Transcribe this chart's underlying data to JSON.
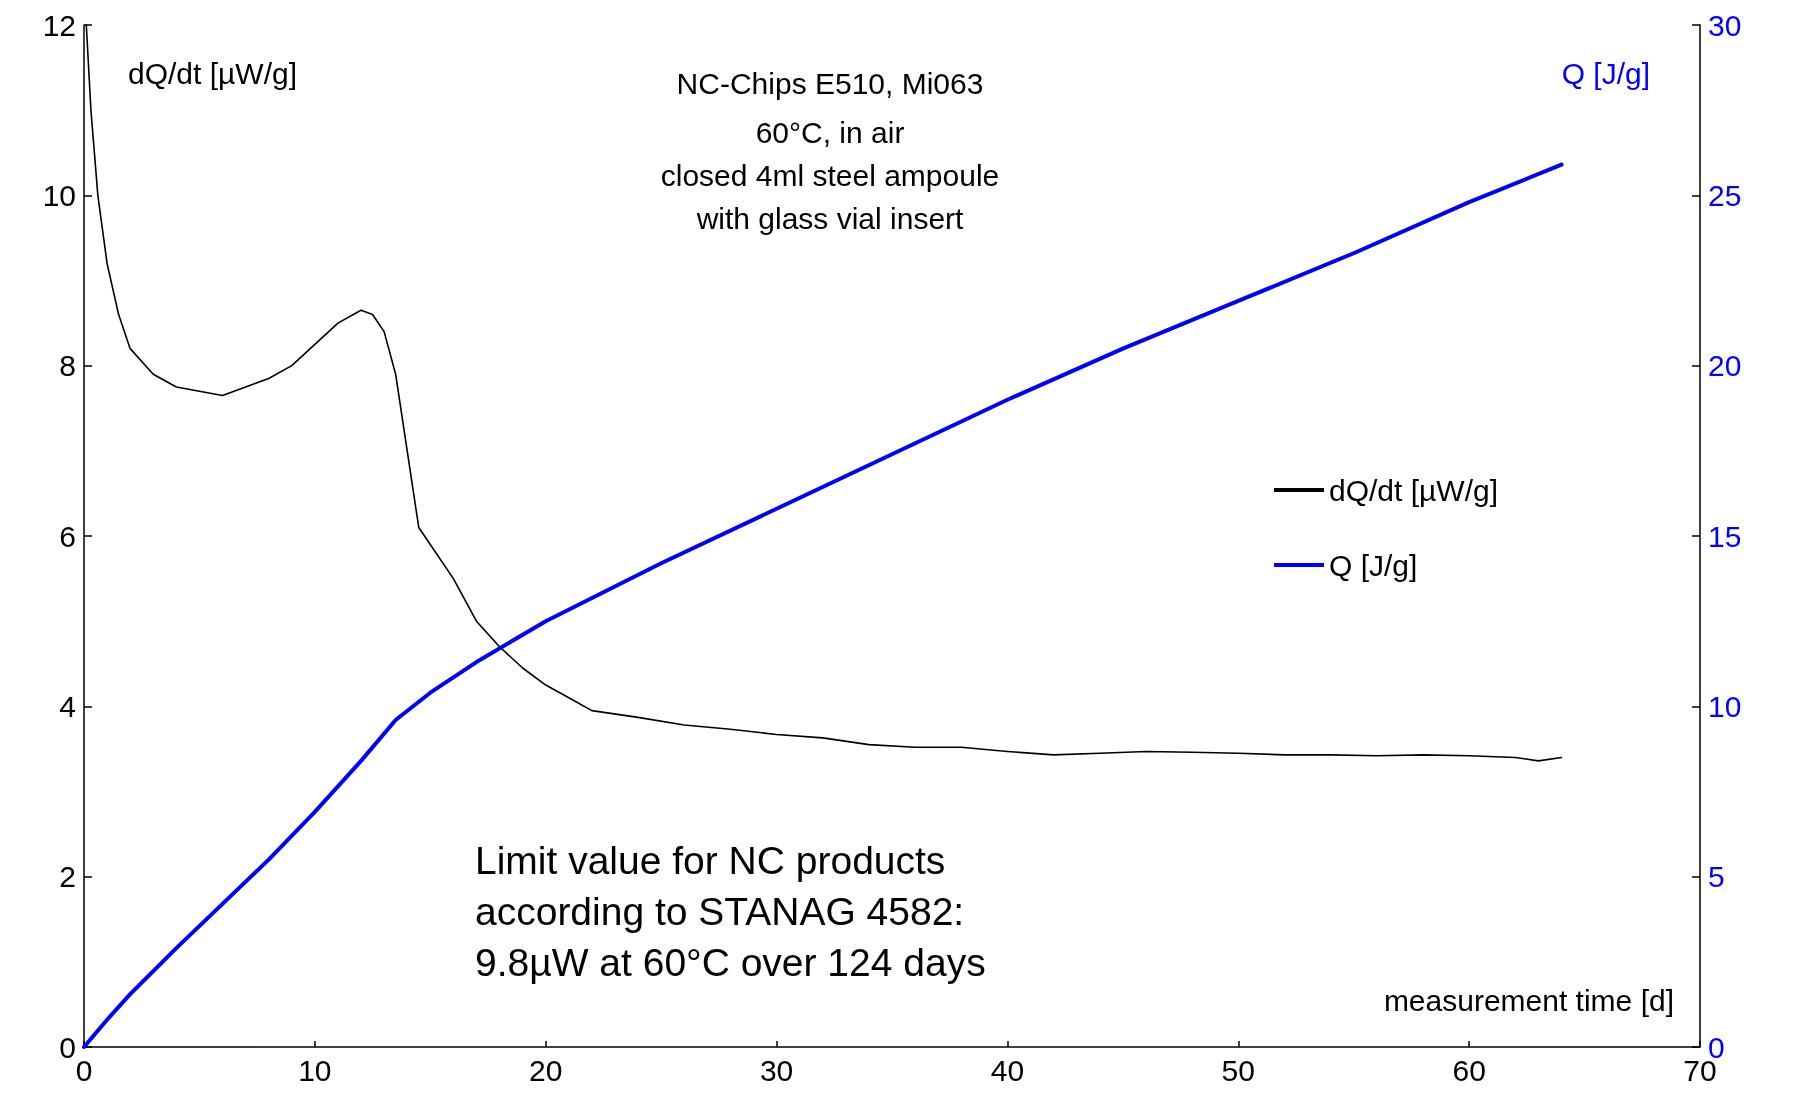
{
  "chart_data": {
    "type": "line",
    "title": "NC-Chips E510, Mi063",
    "subtitle": "60°C, in air\nclosed 4ml steel ampoule\nwith glass vial insert",
    "xlabel": "measurement time [d]",
    "ylabel": "dQ/dt [µW/g]",
    "y2label": "Q [J/g]",
    "annotations": [
      "Limit value for NC products\naccording to STANAG 4582:\n9.8µW at 60°C over 124 days"
    ],
    "xlim": [
      0,
      70
    ],
    "xticks": [
      0,
      10,
      20,
      30,
      40,
      50,
      60,
      70
    ],
    "ylim": [
      0,
      12
    ],
    "yticks": [
      0,
      2,
      4,
      6,
      8,
      10,
      12
    ],
    "y2lim": [
      0,
      30
    ],
    "y2ticks": [
      0,
      5,
      10,
      15,
      20,
      25,
      30
    ],
    "grid": false,
    "legend": "right",
    "marker": "none",
    "line_style": "solid",
    "series": [
      {
        "name": "dQ/dt [µW/g]",
        "color": "#000000",
        "x": [
          0.1,
          0.3,
          0.6,
          1,
          1.5,
          2,
          3,
          4,
          5,
          6,
          7,
          8,
          9,
          10,
          11,
          12,
          12.5,
          13,
          13.5,
          14,
          14.5,
          15,
          16,
          17,
          18,
          19,
          20,
          21,
          22,
          24,
          26,
          28,
          30,
          32,
          34,
          36,
          38,
          40,
          42,
          44,
          46,
          48,
          50,
          52,
          54,
          56,
          58,
          60,
          62,
          63,
          64
        ],
        "values": [
          12,
          11,
          10,
          9.2,
          8.6,
          8.2,
          7.9,
          7.75,
          7.7,
          7.65,
          7.75,
          7.85,
          8.0,
          8.25,
          8.5,
          8.65,
          8.6,
          8.4,
          7.9,
          7.0,
          6.1,
          5.9,
          5.5,
          5.0,
          4.7,
          4.45,
          4.25,
          4.1,
          3.95,
          3.87,
          3.78,
          3.73,
          3.67,
          3.63,
          3.55,
          3.52,
          3.52,
          3.47,
          3.43,
          3.45,
          3.47,
          3.46,
          3.45,
          3.43,
          3.43,
          3.42,
          3.43,
          3.42,
          3.4,
          3.36,
          3.4
        ]
      },
      {
        "name": "Q [J/g]",
        "color": "#0000ff",
        "axis": "y2",
        "x": [
          0,
          1,
          2,
          4,
          6,
          8,
          10,
          12,
          13.5,
          15,
          17,
          20,
          25,
          30,
          35,
          40,
          45,
          50,
          55,
          60,
          64
        ],
        "values": [
          0,
          0.8,
          1.55,
          2.9,
          4.2,
          5.5,
          6.9,
          8.4,
          9.6,
          10.4,
          11.3,
          12.5,
          14.2,
          15.8,
          17.4,
          19.0,
          20.5,
          21.9,
          23.3,
          24.8,
          25.9
        ]
      }
    ]
  }
}
